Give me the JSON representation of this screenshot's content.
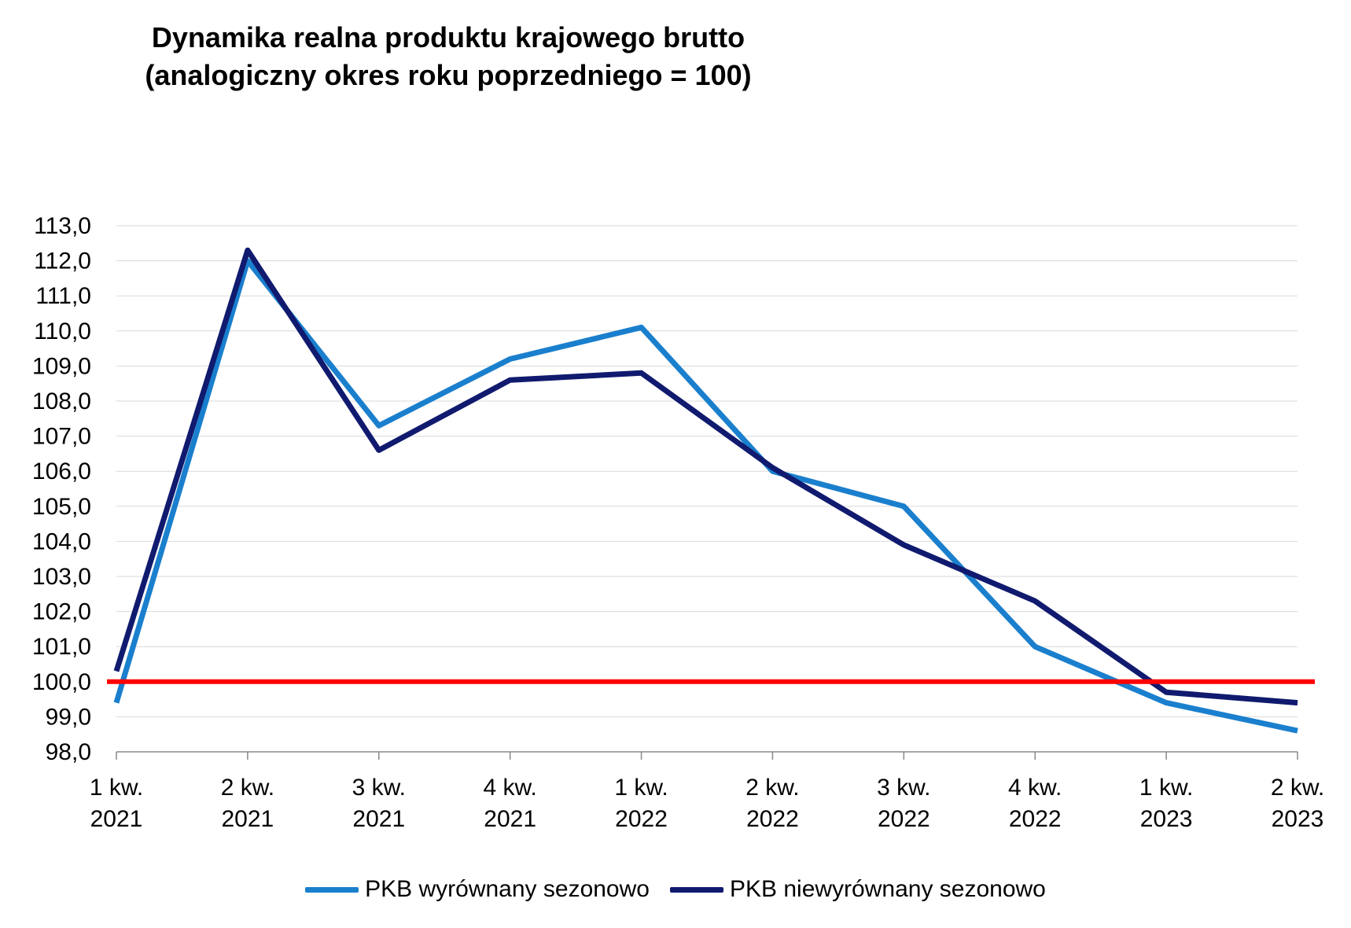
{
  "chart_data": {
    "type": "line",
    "title": "Dynamika realna produktu krajowego brutto",
    "subtitle": "(analogiczny okres roku poprzedniego = 100)",
    "categories": [
      [
        "1 kw.",
        "2021"
      ],
      [
        "2 kw.",
        "2021"
      ],
      [
        "3 kw.",
        "2021"
      ],
      [
        "4 kw.",
        "2021"
      ],
      [
        "1 kw.",
        "2022"
      ],
      [
        "2 kw.",
        "2022"
      ],
      [
        "3 kw.",
        "2022"
      ],
      [
        "4 kw.",
        "2022"
      ],
      [
        "1 kw.",
        "2023"
      ],
      [
        "2 kw.",
        "2023"
      ]
    ],
    "series": [
      {
        "name": "PKB wyrównany sezonowo",
        "color": "#1a7fcd",
        "values": [
          99.4,
          112.0,
          107.3,
          109.2,
          110.1,
          106.0,
          105.0,
          101.0,
          99.4,
          98.6
        ]
      },
      {
        "name": "PKB niewyrównany sezonowo",
        "color": "#101a6e",
        "values": [
          100.3,
          112.3,
          106.6,
          108.6,
          108.8,
          106.1,
          103.9,
          102.3,
          99.7,
          99.4
        ]
      }
    ],
    "reference_line": {
      "value": 100.0,
      "color": "#ff0000"
    },
    "ylim": [
      98.0,
      113.0
    ],
    "yticks": [
      "98,0",
      "99,0",
      "100,0",
      "101,0",
      "102,0",
      "103,0",
      "104,0",
      "105,0",
      "106,0",
      "107,0",
      "108,0",
      "109,0",
      "110,0",
      "111,0",
      "112,0",
      "113,0"
    ],
    "grid": true,
    "gridline_color": "#d9d9d9",
    "legend_position": "bottom"
  }
}
